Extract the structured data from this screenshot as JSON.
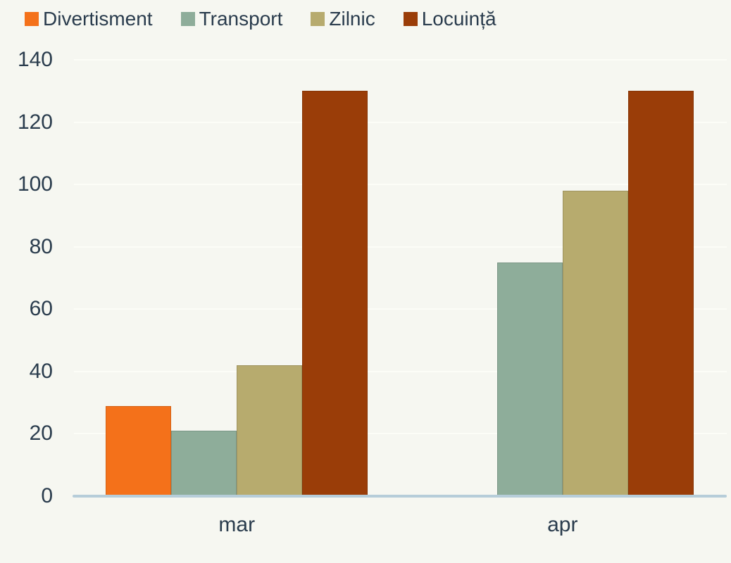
{
  "chart_data": {
    "type": "bar",
    "title": "",
    "categories": [
      "mar",
      "apr"
    ],
    "series": [
      {
        "name": "Divertisment",
        "color": "#f4711a",
        "values": [
          29,
          null
        ]
      },
      {
        "name": "Transport",
        "color": "#8ead9a",
        "values": [
          21,
          75
        ]
      },
      {
        "name": "Zilnic",
        "color": "#b7ab6e",
        "values": [
          42,
          98
        ]
      },
      {
        "name": "Locuință",
        "color": "#9a3d08",
        "values": [
          130,
          130
        ]
      }
    ],
    "xlabel": "",
    "ylabel": "",
    "ylim": [
      0,
      140
    ],
    "yticks": [
      0,
      20,
      40,
      60,
      80,
      100,
      120,
      140
    ],
    "grid": true,
    "legend_position": "top-left"
  },
  "colors": {
    "background": "#f6f7f1",
    "axis_line": "#b6cdd9",
    "gridline": "#fcfdf7",
    "text": "#2a3c4d"
  }
}
